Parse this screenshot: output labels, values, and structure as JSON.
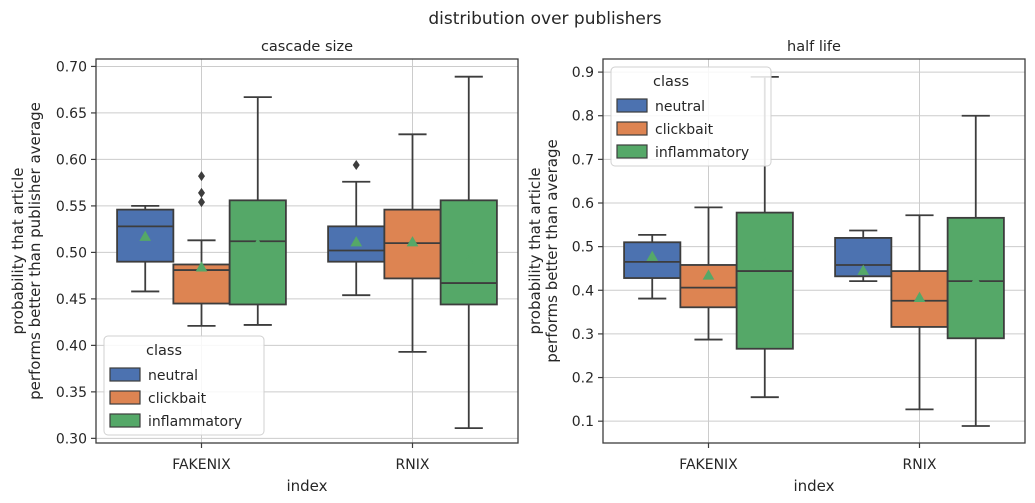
{
  "suptitle": "distribution over publishers",
  "chart_data": [
    {
      "type": "box",
      "title": "cascade size",
      "xlabel": "index",
      "ylabel": [
        "probability that article",
        "performs better than publisher average"
      ],
      "categories": [
        "FAKENIX",
        "RNIX"
      ],
      "ylim": [
        0.295,
        0.708
      ],
      "yticks": [
        0.3,
        0.35,
        0.4,
        0.45,
        0.5,
        0.55,
        0.6,
        0.65,
        0.7
      ],
      "ytick_labels": [
        "0.30",
        "0.35",
        "0.40",
        "0.45",
        "0.50",
        "0.55",
        "0.60",
        "0.65",
        "0.70"
      ],
      "grid": true,
      "legend": {
        "title": "class",
        "position": "lower-left"
      },
      "series": [
        {
          "name": "neutral",
          "color": "#4c72b0",
          "boxes": [
            {
              "q1": 0.49,
              "median": 0.528,
              "q3": 0.546,
              "whislo": 0.458,
              "whishi": 0.55,
              "mean": 0.517,
              "fliers": []
            },
            {
              "q1": 0.49,
              "median": 0.502,
              "q3": 0.528,
              "whislo": 0.454,
              "whishi": 0.576,
              "mean": 0.511,
              "fliers": [
                0.594
              ]
            }
          ]
        },
        {
          "name": "clickbait",
          "color": "#dd8452",
          "boxes": [
            {
              "q1": 0.445,
              "median": 0.481,
              "q3": 0.487,
              "whislo": 0.421,
              "whishi": 0.513,
              "mean": 0.484,
              "fliers": [
                0.554,
                0.564,
                0.582
              ]
            },
            {
              "q1": 0.472,
              "median": 0.51,
              "q3": 0.546,
              "whislo": 0.393,
              "whishi": 0.627,
              "mean": 0.511,
              "fliers": []
            }
          ]
        },
        {
          "name": "inflammatory",
          "color": "#55a868",
          "boxes": [
            {
              "q1": 0.444,
              "median": 0.512,
              "q3": 0.556,
              "whislo": 0.422,
              "whishi": 0.667,
              "mean": 0.509,
              "fliers": []
            },
            {
              "q1": 0.444,
              "median": 0.467,
              "q3": 0.556,
              "whislo": 0.311,
              "whishi": 0.689,
              "mean": 0.491,
              "fliers": []
            }
          ]
        }
      ]
    },
    {
      "type": "box",
      "title": "half life",
      "xlabel": "index",
      "ylabel": [
        "probability that article",
        "performs better than average"
      ],
      "categories": [
        "FAKENIX",
        "RNIX"
      ],
      "ylim": [
        0.05,
        0.93
      ],
      "yticks": [
        0.1,
        0.2,
        0.3,
        0.4,
        0.5,
        0.6,
        0.7,
        0.8,
        0.9
      ],
      "ytick_labels": [
        "0.1",
        "0.2",
        "0.3",
        "0.4",
        "0.5",
        "0.6",
        "0.7",
        "0.8",
        "0.9"
      ],
      "grid": true,
      "legend": {
        "title": "class",
        "position": "upper-left"
      },
      "series": [
        {
          "name": "neutral",
          "color": "#4c72b0",
          "boxes": [
            {
              "q1": 0.428,
              "median": 0.465,
              "q3": 0.51,
              "whislo": 0.381,
              "whishi": 0.527,
              "mean": 0.477,
              "fliers": []
            },
            {
              "q1": 0.432,
              "median": 0.458,
              "q3": 0.52,
              "whislo": 0.421,
              "whishi": 0.537,
              "mean": 0.445,
              "fliers": []
            }
          ]
        },
        {
          "name": "clickbait",
          "color": "#dd8452",
          "boxes": [
            {
              "q1": 0.361,
              "median": 0.406,
              "q3": 0.458,
              "whislo": 0.287,
              "whishi": 0.59,
              "mean": 0.434,
              "fliers": []
            },
            {
              "q1": 0.316,
              "median": 0.376,
              "q3": 0.444,
              "whislo": 0.127,
              "whishi": 0.572,
              "mean": 0.383,
              "fliers": []
            }
          ]
        },
        {
          "name": "inflammatory",
          "color": "#55a868",
          "boxes": [
            {
              "q1": 0.266,
              "median": 0.444,
              "q3": 0.578,
              "whislo": 0.155,
              "whishi": 0.889,
              "mean": 0.464,
              "fliers": []
            },
            {
              "q1": 0.29,
              "median": 0.421,
              "q3": 0.566,
              "whislo": 0.089,
              "whishi": 0.8,
              "mean": 0.421,
              "fliers": []
            }
          ]
        }
      ]
    }
  ]
}
